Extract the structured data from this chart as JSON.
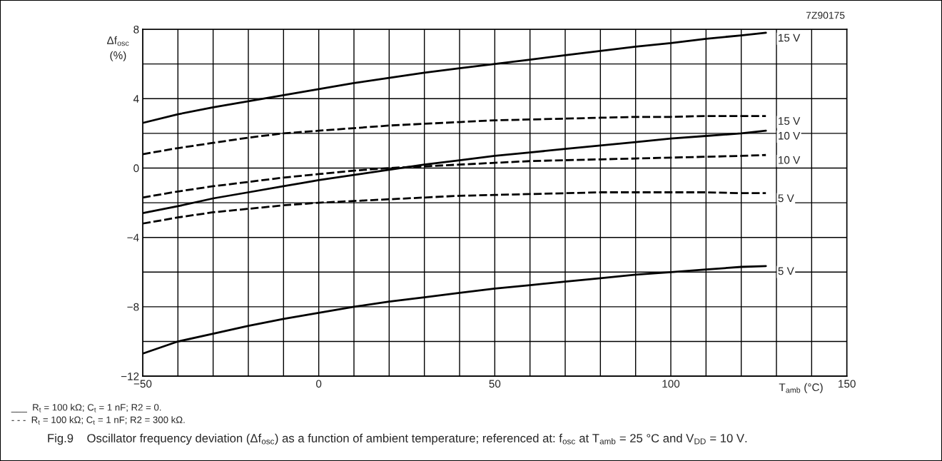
{
  "chart_data": {
    "type": "line",
    "xlabel": "T$_{amb}$ (°C)",
    "ylabel": "Δf$_{osc}$\n(%)",
    "x": [
      -50,
      -40,
      -30,
      -20,
      -10,
      0,
      10,
      20,
      30,
      40,
      50,
      60,
      70,
      80,
      90,
      100,
      110,
      120,
      127
    ],
    "series": [
      {
        "name": "15 V",
        "color": "#000000",
        "line_style": "solid",
        "values": [
          2.6,
          3.1,
          3.5,
          3.85,
          4.2,
          4.55,
          4.9,
          5.2,
          5.5,
          5.75,
          6.0,
          6.25,
          6.5,
          6.75,
          7.0,
          7.2,
          7.45,
          7.65,
          7.8
        ]
      },
      {
        "name": "15 V",
        "color": "#000000",
        "line_style": "dashed",
        "values": [
          0.8,
          1.15,
          1.45,
          1.75,
          2.0,
          2.15,
          2.3,
          2.45,
          2.55,
          2.65,
          2.75,
          2.8,
          2.85,
          2.9,
          2.95,
          2.95,
          3.0,
          3.0,
          3.0
        ]
      },
      {
        "name": "10 V",
        "color": "#000000",
        "line_style": "solid",
        "values": [
          -2.6,
          -2.2,
          -1.75,
          -1.4,
          -1.05,
          -0.7,
          -0.4,
          -0.1,
          0.2,
          0.45,
          0.7,
          0.9,
          1.1,
          1.3,
          1.5,
          1.7,
          1.85,
          2.0,
          2.15
        ]
      },
      {
        "name": "10 V",
        "color": "#000000",
        "line_style": "dashed",
        "values": [
          -1.7,
          -1.35,
          -1.05,
          -0.8,
          -0.55,
          -0.35,
          -0.15,
          0.0,
          0.1,
          0.2,
          0.3,
          0.4,
          0.45,
          0.5,
          0.55,
          0.6,
          0.65,
          0.7,
          0.75
        ]
      },
      {
        "name": "5 V",
        "color": "#000000",
        "line_style": "dashed",
        "values": [
          -3.2,
          -2.85,
          -2.55,
          -2.35,
          -2.15,
          -2.0,
          -1.9,
          -1.8,
          -1.7,
          -1.6,
          -1.55,
          -1.5,
          -1.45,
          -1.4,
          -1.4,
          -1.4,
          -1.4,
          -1.45,
          -1.45
        ]
      },
      {
        "name": "5 V",
        "color": "#000000",
        "line_style": "solid",
        "values": [
          -10.7,
          -10.0,
          -9.55,
          -9.1,
          -8.7,
          -8.35,
          -8.0,
          -7.7,
          -7.45,
          -7.2,
          -6.95,
          -6.75,
          -6.55,
          -6.35,
          -6.15,
          -6.0,
          -5.85,
          -5.7,
          -5.65
        ]
      }
    ],
    "xlim": [
      -50,
      150
    ],
    "xticks": [
      {
        "value": -50,
        "label": "−50"
      },
      {
        "value": -40,
        "label": null
      },
      {
        "value": -30,
        "label": null
      },
      {
        "value": -20,
        "label": null
      },
      {
        "value": -10,
        "label": null
      },
      0,
      {
        "value": 10,
        "label": null
      },
      {
        "value": 20,
        "label": null
      },
      {
        "value": 30,
        "label": null
      },
      {
        "value": 40,
        "label": null
      },
      50,
      {
        "value": 60,
        "label": null
      },
      {
        "value": 70,
        "label": null
      },
      {
        "value": 80,
        "label": null
      },
      {
        "value": 90,
        "label": null
      },
      100,
      {
        "value": 110,
        "label": null
      },
      {
        "value": 120,
        "label": null
      },
      {
        "value": 130,
        "label": null
      },
      {
        "value": 140,
        "label": null
      },
      150
    ],
    "ylim": [
      -12,
      8
    ],
    "yticks": [
      {
        "value": -12,
        "label": "−12"
      },
      {
        "value": -10,
        "label": null
      },
      {
        "value": -8,
        "label": "−8"
      },
      {
        "value": -6,
        "label": null
      },
      {
        "value": -4,
        "label": "−4"
      },
      {
        "value": -2,
        "label": null
      },
      0,
      {
        "value": 2,
        "label": null
      },
      4,
      {
        "value": 6,
        "label": null
      },
      8
    ],
    "grid": true,
    "legend": false,
    "annotations": [
      "7Z90175",
      "___  R$_{t}$ = 100 kΩ; C$_{t}$ = 1 nF; R2 = 0.",
      "- - -  R$_{t}$ = 100 kΩ; C$_{t}$ = 1 nF; R2 = 300 kΩ.",
      "Fig.9    Oscillator frequency deviation (Δf$_{osc}$) as a function of ambient temperature; referenced at: f$_{osc}$ at T$_{amb}$ = 25 °C and V$_{DD}$ = 10 V."
    ]
  }
}
